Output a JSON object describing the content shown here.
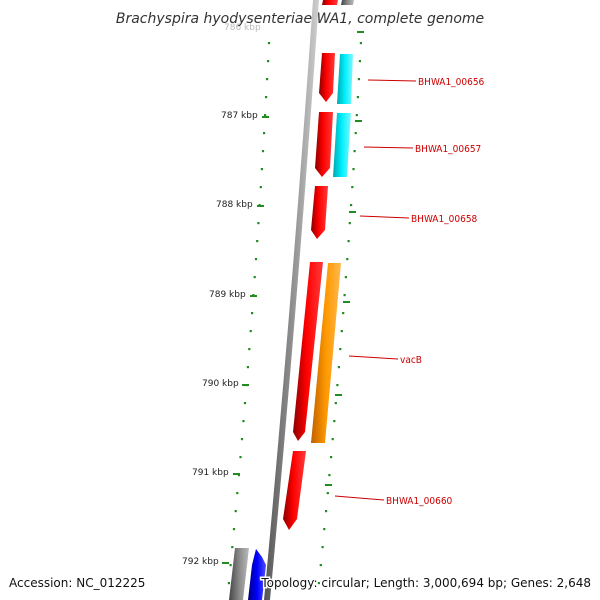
{
  "title": "Brachyspira hyodysenteriae WA1, complete genome",
  "accession_text": "Accession: NC_012225",
  "topology_text": "Topology: circular; Length: 3,000,694 bp; Genes: 2,648",
  "top_tick_label": "786 kbp",
  "kbp_labels": [
    "787 kbp",
    "788 kbp",
    "789 kbp",
    "790 kbp",
    "791 kbp",
    "792 kbp"
  ],
  "genes": [
    {
      "name": "BHWA1_00656",
      "color": "#ff0000"
    },
    {
      "name": "BHWA1_00657",
      "color": "#ff0000"
    },
    {
      "name": "BHWA1_00658",
      "color": "#ff0000"
    },
    {
      "name": "vacB",
      "color": "#ff0000"
    },
    {
      "name": "BHWA1_00660",
      "color": "#ff0000"
    }
  ],
  "colors": {
    "cds": "#ff0000",
    "rna_cyan": "#00e5ee",
    "rna_orange": "#ff9900",
    "other_blue": "#0000ff",
    "other_gray": "#888888",
    "backbone": "#999999",
    "tick_green": "#228b22",
    "label_red": "#cc0000"
  }
}
